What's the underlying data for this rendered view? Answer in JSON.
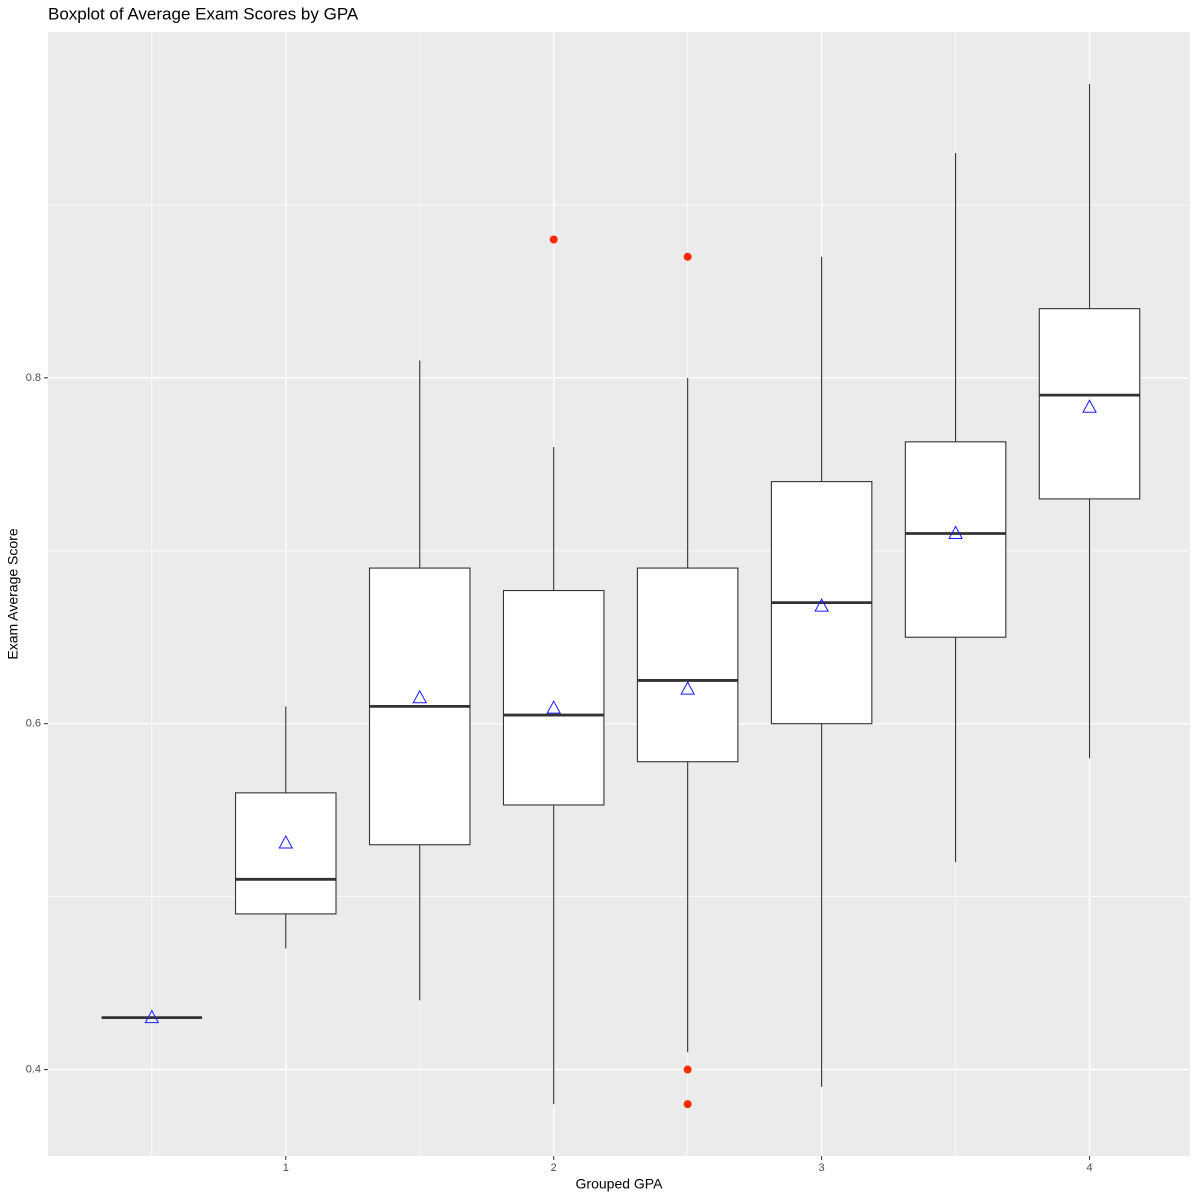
{
  "chart_data": {
    "type": "boxplot",
    "title": "Boxplot of Average Exam Scores by GPA",
    "x_label": "Grouped GPA",
    "y_label": "Exam Average Score",
    "xlim": [
      0.1125,
      4.375
    ],
    "ylim": [
      0.35,
      1.0
    ],
    "xticks": [
      1,
      2,
      3,
      4
    ],
    "yticks": [
      0.4,
      0.6,
      0.8
    ],
    "x_minor_ticks": [
      0.5,
      1.5,
      2.5,
      3.5
    ],
    "y_minor_ticks": [
      0.5,
      0.7,
      0.9
    ],
    "grid": true,
    "box_color": "#333333",
    "mean_color": "#1a1aff",
    "outlier_color": "#ff2a00",
    "boxes": [
      {
        "x": 0.5,
        "low": 0.43,
        "q1": 0.43,
        "median": 0.43,
        "q3": 0.43,
        "high": 0.43,
        "mean": 0.43,
        "outliers": []
      },
      {
        "x": 1,
        "low": 0.47,
        "q1": 0.49,
        "median": 0.51,
        "q3": 0.56,
        "high": 0.61,
        "mean": 0.531,
        "outliers": []
      },
      {
        "x": 1.5,
        "low": 0.44,
        "q1": 0.53,
        "median": 0.61,
        "q3": 0.69,
        "high": 0.81,
        "mean": 0.615,
        "outliers": []
      },
      {
        "x": 2,
        "low": 0.38,
        "q1": 0.553,
        "median": 0.605,
        "q3": 0.677,
        "high": 0.76,
        "mean": 0.609,
        "outliers": [
          0.88
        ]
      },
      {
        "x": 2.5,
        "low": 0.41,
        "q1": 0.578,
        "median": 0.625,
        "q3": 0.69,
        "high": 0.8,
        "mean": 0.62,
        "outliers": [
          0.87,
          0.4,
          0.38
        ]
      },
      {
        "x": 3,
        "low": 0.39,
        "q1": 0.6,
        "median": 0.67,
        "q3": 0.74,
        "high": 0.87,
        "mean": 0.668,
        "outliers": []
      },
      {
        "x": 3.5,
        "low": 0.52,
        "q1": 0.65,
        "median": 0.71,
        "q3": 0.763,
        "high": 0.93,
        "mean": 0.71,
        "outliers": []
      },
      {
        "x": 4,
        "low": 0.58,
        "q1": 0.73,
        "median": 0.79,
        "q3": 0.84,
        "high": 0.97,
        "mean": 0.783,
        "outliers": []
      }
    ]
  }
}
